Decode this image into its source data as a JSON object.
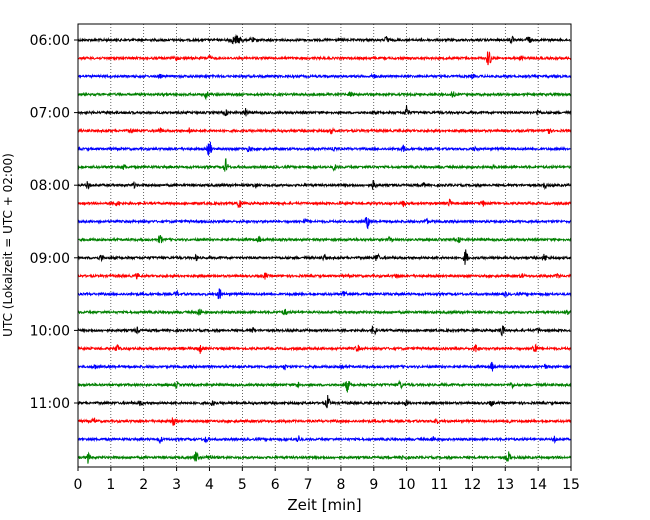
{
  "chart_data": {
    "type": "line",
    "subtype": "helicorder",
    "title": "",
    "xlabel": "Zeit  [min]",
    "ylabel": "UTC (Lokalzeit = UTC + 02:00)",
    "xlim": [
      0,
      15
    ],
    "x_ticks": [
      "0",
      "1",
      "2",
      "3",
      "4",
      "5",
      "6",
      "7",
      "8",
      "9",
      "10",
      "11",
      "12",
      "13",
      "14",
      "15"
    ],
    "y_tick_labels": [
      "06:00",
      "07:00",
      "08:00",
      "09:00",
      "10:00",
      "11:00"
    ],
    "grid": "vertical dotted lines at each minute",
    "trace_interval_minutes": 15,
    "trace_colors": [
      "#000000",
      "#ff0000",
      "#0000ff",
      "#008000"
    ],
    "trace_start_times": [
      "06:00",
      "06:15",
      "06:30",
      "06:45",
      "07:00",
      "07:15",
      "07:30",
      "07:45",
      "08:00",
      "08:15",
      "08:30",
      "08:45",
      "09:00",
      "09:15",
      "09:30",
      "09:45",
      "10:00",
      "10:15",
      "10:30",
      "10:45",
      "11:00",
      "11:15",
      "11:30",
      "11:45"
    ],
    "events": [
      [
        [
          4.6,
          5.0,
          0.45
        ],
        [
          5.3,
          0.3
        ],
        [
          9.4,
          0.5
        ],
        [
          13.2,
          0.4
        ],
        [
          13.7,
          0.5
        ]
      ],
      [
        [
          3.0,
          0.25
        ],
        [
          4.0,
          0.3
        ],
        [
          12.5,
          1.2
        ],
        [
          13.5,
          0.25
        ]
      ],
      [
        [
          2.5,
          0.2
        ],
        [
          9.0,
          0.25
        ],
        [
          12.0,
          0.2
        ]
      ],
      [
        [
          3.9,
          0.45
        ],
        [
          8.3,
          0.5
        ],
        [
          11.4,
          0.35
        ]
      ],
      [
        [
          4.5,
          0.3
        ],
        [
          5.1,
          0.4
        ],
        [
          10.0,
          0.8
        ],
        [
          14.0,
          0.35
        ]
      ],
      [
        [
          1.6,
          0.3
        ],
        [
          2.5,
          0.3
        ],
        [
          3.4,
          0.3
        ],
        [
          7.7,
          0.3
        ],
        [
          14.3,
          0.5
        ]
      ],
      [
        [
          4.0,
          1.1
        ],
        [
          5.2,
          0.3
        ],
        [
          7.8,
          0.3
        ],
        [
          9.9,
          0.35
        ],
        [
          12.1,
          0.3
        ]
      ],
      [
        [
          1.4,
          0.3
        ],
        [
          4.5,
          0.9
        ],
        [
          7.8,
          0.35
        ],
        [
          12.6,
          0.25
        ]
      ],
      [
        [
          0.3,
          0.45
        ],
        [
          1.7,
          0.3
        ],
        [
          5.4,
          0.3
        ],
        [
          9.0,
          0.6
        ],
        [
          10.5,
          0.3
        ],
        [
          14.2,
          0.35
        ]
      ],
      [
        [
          1.2,
          0.3
        ],
        [
          4.9,
          0.7
        ],
        [
          9.9,
          0.3
        ],
        [
          11.3,
          0.45
        ],
        [
          12.3,
          0.3
        ]
      ],
      [
        [
          6.9,
          0.3
        ],
        [
          8.8,
          0.8
        ],
        [
          10.6,
          0.3
        ]
      ],
      [
        [
          2.5,
          0.55
        ],
        [
          5.5,
          0.35
        ],
        [
          9.5,
          0.3
        ],
        [
          11.6,
          0.25
        ]
      ],
      [
        [
          0.7,
          0.35
        ],
        [
          3.6,
          0.3
        ],
        [
          7.5,
          0.3
        ],
        [
          9.1,
          0.5
        ],
        [
          11.8,
          1.0
        ],
        [
          14.2,
          0.45
        ]
      ],
      [
        [
          1.8,
          0.3
        ],
        [
          5.7,
          0.35
        ],
        [
          9.7,
          0.25
        ],
        [
          13.5,
          0.25
        ],
        [
          14.6,
          0.25
        ]
      ],
      [
        [
          3.0,
          0.3
        ],
        [
          4.3,
          0.7
        ],
        [
          8.1,
          0.45
        ],
        [
          13.0,
          0.25
        ]
      ],
      [
        [
          3.7,
          0.5
        ],
        [
          6.3,
          0.3
        ],
        [
          14.9,
          0.3
        ]
      ],
      [
        [
          1.8,
          0.3
        ],
        [
          5.3,
          0.35
        ],
        [
          9.0,
          0.7
        ],
        [
          12.9,
          0.8
        ],
        [
          14.0,
          0.25
        ]
      ],
      [
        [
          1.2,
          0.5
        ],
        [
          3.7,
          0.6
        ],
        [
          8.5,
          0.45
        ],
        [
          12.1,
          0.5
        ],
        [
          13.9,
          0.9
        ]
      ],
      [
        [
          0.5,
          0.3
        ],
        [
          6.3,
          0.3
        ],
        [
          8.0,
          0.3
        ],
        [
          12.6,
          0.5
        ],
        [
          14.2,
          0.25
        ]
      ],
      [
        [
          3.0,
          0.3
        ],
        [
          6.7,
          0.3
        ],
        [
          8.2,
          0.8
        ],
        [
          9.8,
          0.5
        ],
        [
          13.2,
          0.3
        ]
      ],
      [
        [
          1.9,
          0.3
        ],
        [
          4.1,
          0.3
        ],
        [
          7.6,
          0.8
        ],
        [
          10.0,
          0.3
        ],
        [
          12.6,
          0.3
        ]
      ],
      [
        [
          0.5,
          0.3
        ],
        [
          2.9,
          0.45
        ],
        [
          10.9,
          0.35
        ],
        [
          13.1,
          0.3
        ]
      ],
      [
        [
          2.5,
          0.4
        ],
        [
          3.9,
          0.3
        ],
        [
          6.7,
          0.45
        ],
        [
          10.8,
          0.3
        ],
        [
          14.5,
          0.3
        ]
      ],
      [
        [
          0.3,
          0.6
        ],
        [
          3.6,
          0.8
        ],
        [
          4.0,
          0.3
        ],
        [
          9.9,
          0.3
        ],
        [
          13.1,
          0.6
        ]
      ]
    ]
  }
}
